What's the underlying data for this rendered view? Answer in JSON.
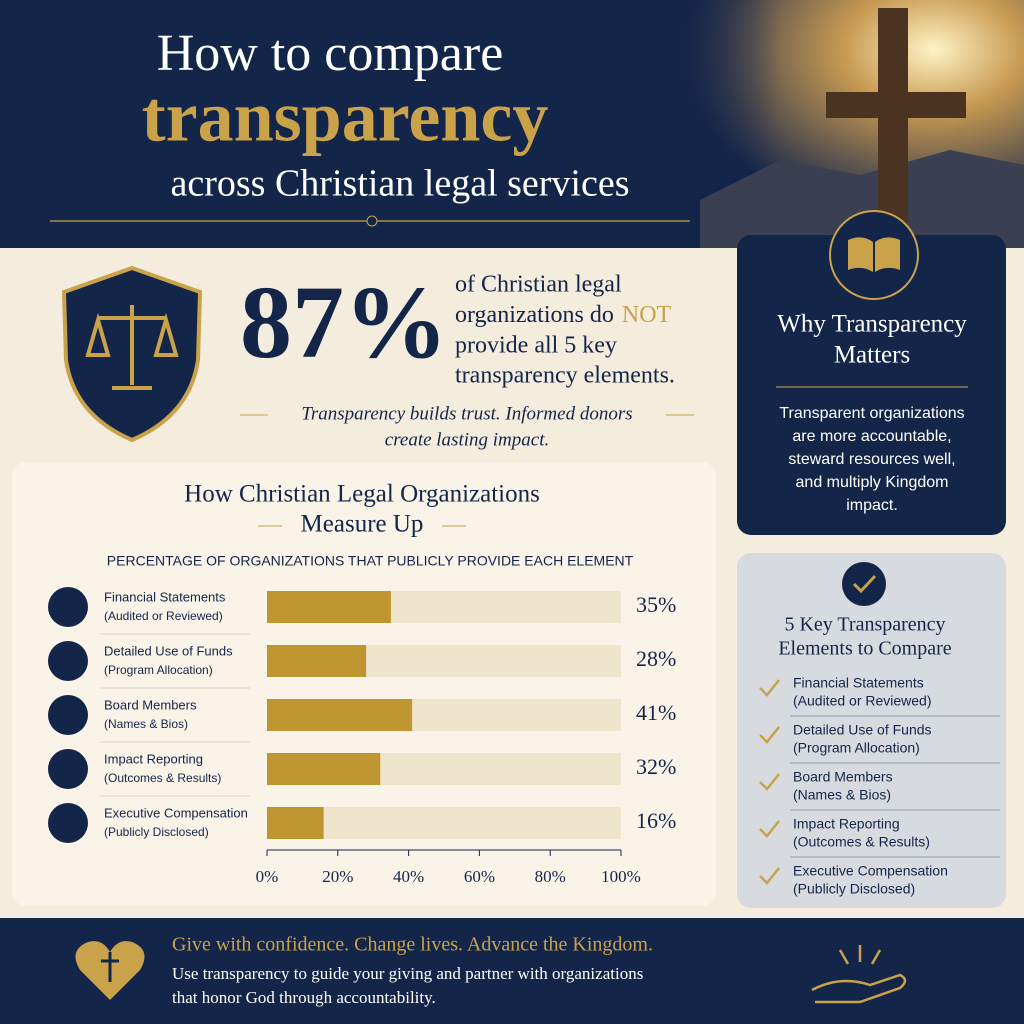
{
  "header": {
    "title_lines": [
      "How to compare",
      "transparency",
      "across Christian legal services"
    ]
  },
  "stat": {
    "value": "87%",
    "lines": [
      "of Christian legal",
      "organizations do",
      "provide all 5 key",
      "transparency elements."
    ],
    "emphasis": "NOT",
    "quote_lines": [
      "Transparency builds trust. Informed donors",
      "create lasting impact."
    ]
  },
  "why": {
    "title_lines": [
      "Why Transparency",
      "Matters"
    ],
    "body_lines": [
      "Transparent organizations",
      "are more accountable,",
      "steward resources well,",
      "and multiply Kingdom",
      "impact."
    ]
  },
  "key_elements": {
    "title_lines": [
      "5 Key Transparency",
      "Elements to Compare"
    ],
    "items": [
      [
        "Financial Statements",
        "(Audited or Reviewed)"
      ],
      [
        "Detailed Use of Funds",
        "(Program Allocation)"
      ],
      [
        "Board Members",
        "(Names & Bios)"
      ],
      [
        "Impact Reporting",
        "(Outcomes & Results)"
      ],
      [
        "Executive Compensation",
        "(Publicly Disclosed)"
      ]
    ]
  },
  "footer": {
    "headline": "Give with confidence. Change lives. Advance the Kingdom.",
    "body_lines": [
      "Use transparency to guide your giving and partner with organizations",
      "that honor God through accountability."
    ]
  },
  "chart_data": {
    "type": "hbar",
    "title_lines": [
      "How Christian Legal Organizations",
      "Measure Up"
    ],
    "subtitle": "PERCENTAGE OF ORGANIZATIONS THAT PUBLICLY PROVIDE EACH ELEMENT",
    "categories": [
      "Financial Statements",
      "Detailed Use of Funds",
      "Board Members",
      "Impact Reporting",
      "Executive Compensation"
    ],
    "category_details": [
      "(Audited or Reviewed)",
      "(Program Allocation)",
      "(Names & Bios)",
      "(Outcomes & Results)",
      "(Publicly Disclosed)"
    ],
    "values": [
      35,
      28,
      41,
      32,
      16
    ],
    "value_labels": [
      "35%",
      "28%",
      "41%",
      "32%",
      "16%"
    ],
    "color": "#bf9530",
    "track_color": "#efe4cc",
    "xlim": [
      0,
      100
    ],
    "xticks": [
      {
        "value": 0,
        "label": "0%"
      },
      {
        "value": 20,
        "label": "20%"
      },
      {
        "value": 40,
        "label": "40%"
      },
      {
        "value": 60,
        "label": "60%"
      },
      {
        "value": 80,
        "label": "80%"
      },
      {
        "value": 100,
        "label": "100%"
      }
    ]
  }
}
